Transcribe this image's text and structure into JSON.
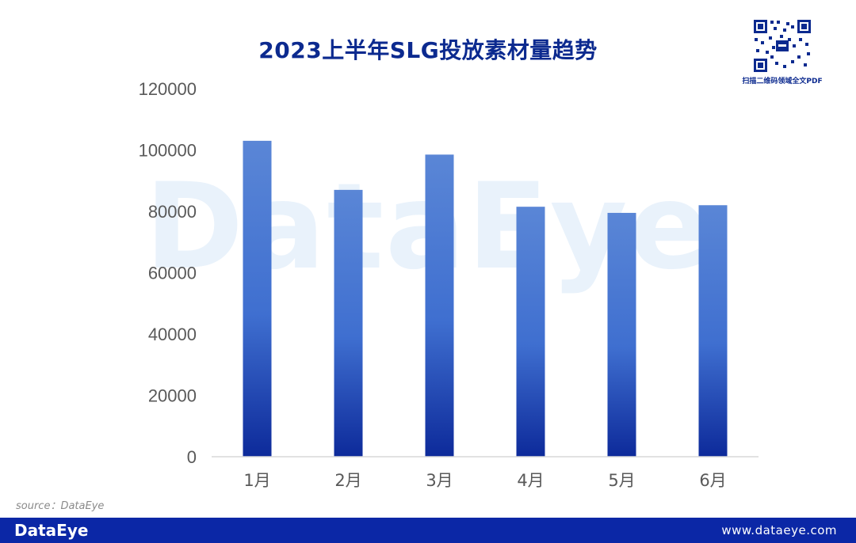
{
  "watermark": "DataEye",
  "qr": {
    "caption": "扫描二维码领域全文PDF"
  },
  "source": "source：DataEye",
  "footer": {
    "logo": "DataEye",
    "url": "www.dataeye.com"
  },
  "colors": {
    "title": "#0c2a8f",
    "bar_top": "#5a86d6",
    "bar_mid": "#3f6fd0",
    "bar_bottom": "#0d2a9a",
    "footer": "#0b27a6",
    "axis_text": "#595959"
  },
  "chart_data": {
    "type": "bar",
    "title": "2023上半年SLG投放素材量趋势",
    "xlabel": "",
    "ylabel": "",
    "categories": [
      "1月",
      "2月",
      "3月",
      "4月",
      "5月",
      "6月"
    ],
    "values": [
      103000,
      87000,
      98500,
      81500,
      79500,
      82000
    ],
    "ylim": [
      0,
      120000
    ],
    "yticks": [
      0,
      20000,
      40000,
      60000,
      80000,
      100000,
      120000
    ],
    "grid": false,
    "legend": "none"
  }
}
